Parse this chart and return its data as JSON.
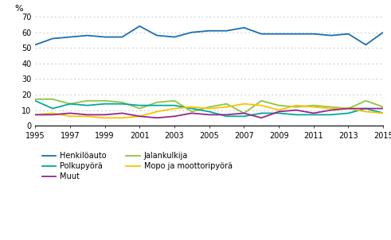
{
  "years": [
    1995,
    1996,
    1997,
    1998,
    1999,
    2000,
    2001,
    2002,
    2003,
    2004,
    2005,
    2006,
    2007,
    2008,
    2009,
    2010,
    2011,
    2012,
    2013,
    2014,
    2015
  ],
  "henkiloauto": [
    52,
    56,
    57,
    58,
    57,
    57,
    64,
    58,
    57,
    60,
    61,
    61,
    63,
    59,
    59,
    59,
    59,
    58,
    59,
    52,
    60
  ],
  "jalankulkija": [
    17,
    17,
    14,
    16,
    16,
    15,
    11,
    15,
    16,
    9,
    12,
    14,
    8,
    16,
    13,
    12,
    13,
    12,
    11,
    16,
    12
  ],
  "polkupyora": [
    16,
    11,
    14,
    13,
    14,
    14,
    13,
    13,
    13,
    11,
    9,
    6,
    6,
    8,
    8,
    7,
    7,
    7,
    8,
    11,
    8
  ],
  "mopo_moottoripyora": [
    7,
    8,
    6,
    6,
    5,
    5,
    6,
    9,
    11,
    12,
    11,
    12,
    14,
    13,
    10,
    13,
    12,
    11,
    11,
    9,
    8
  ],
  "muut": [
    7,
    7,
    8,
    7,
    7,
    8,
    6,
    5,
    6,
    8,
    7,
    7,
    8,
    5,
    9,
    10,
    8,
    10,
    11,
    11,
    11
  ],
  "colors": {
    "henkiloauto": "#1a6faf",
    "jalankulkija": "#8dc63f",
    "polkupyora": "#00a89d",
    "mopo_moottoripyora": "#ffc000",
    "muut": "#92278f"
  },
  "ylabel": "%",
  "ylim": [
    0,
    70
  ],
  "yticks": [
    0,
    10,
    20,
    30,
    40,
    50,
    60,
    70
  ],
  "legend_labels": {
    "henkiloauto": "Henkilöauto",
    "jalankulkija": "Jalankulkija",
    "polkupyora": "Polkupyörä",
    "mopo_moottoripyora": "Mopo ja moottoripyörä",
    "muut": "Muut"
  },
  "background_color": "#ffffff",
  "grid_color": "#c8c8c8"
}
